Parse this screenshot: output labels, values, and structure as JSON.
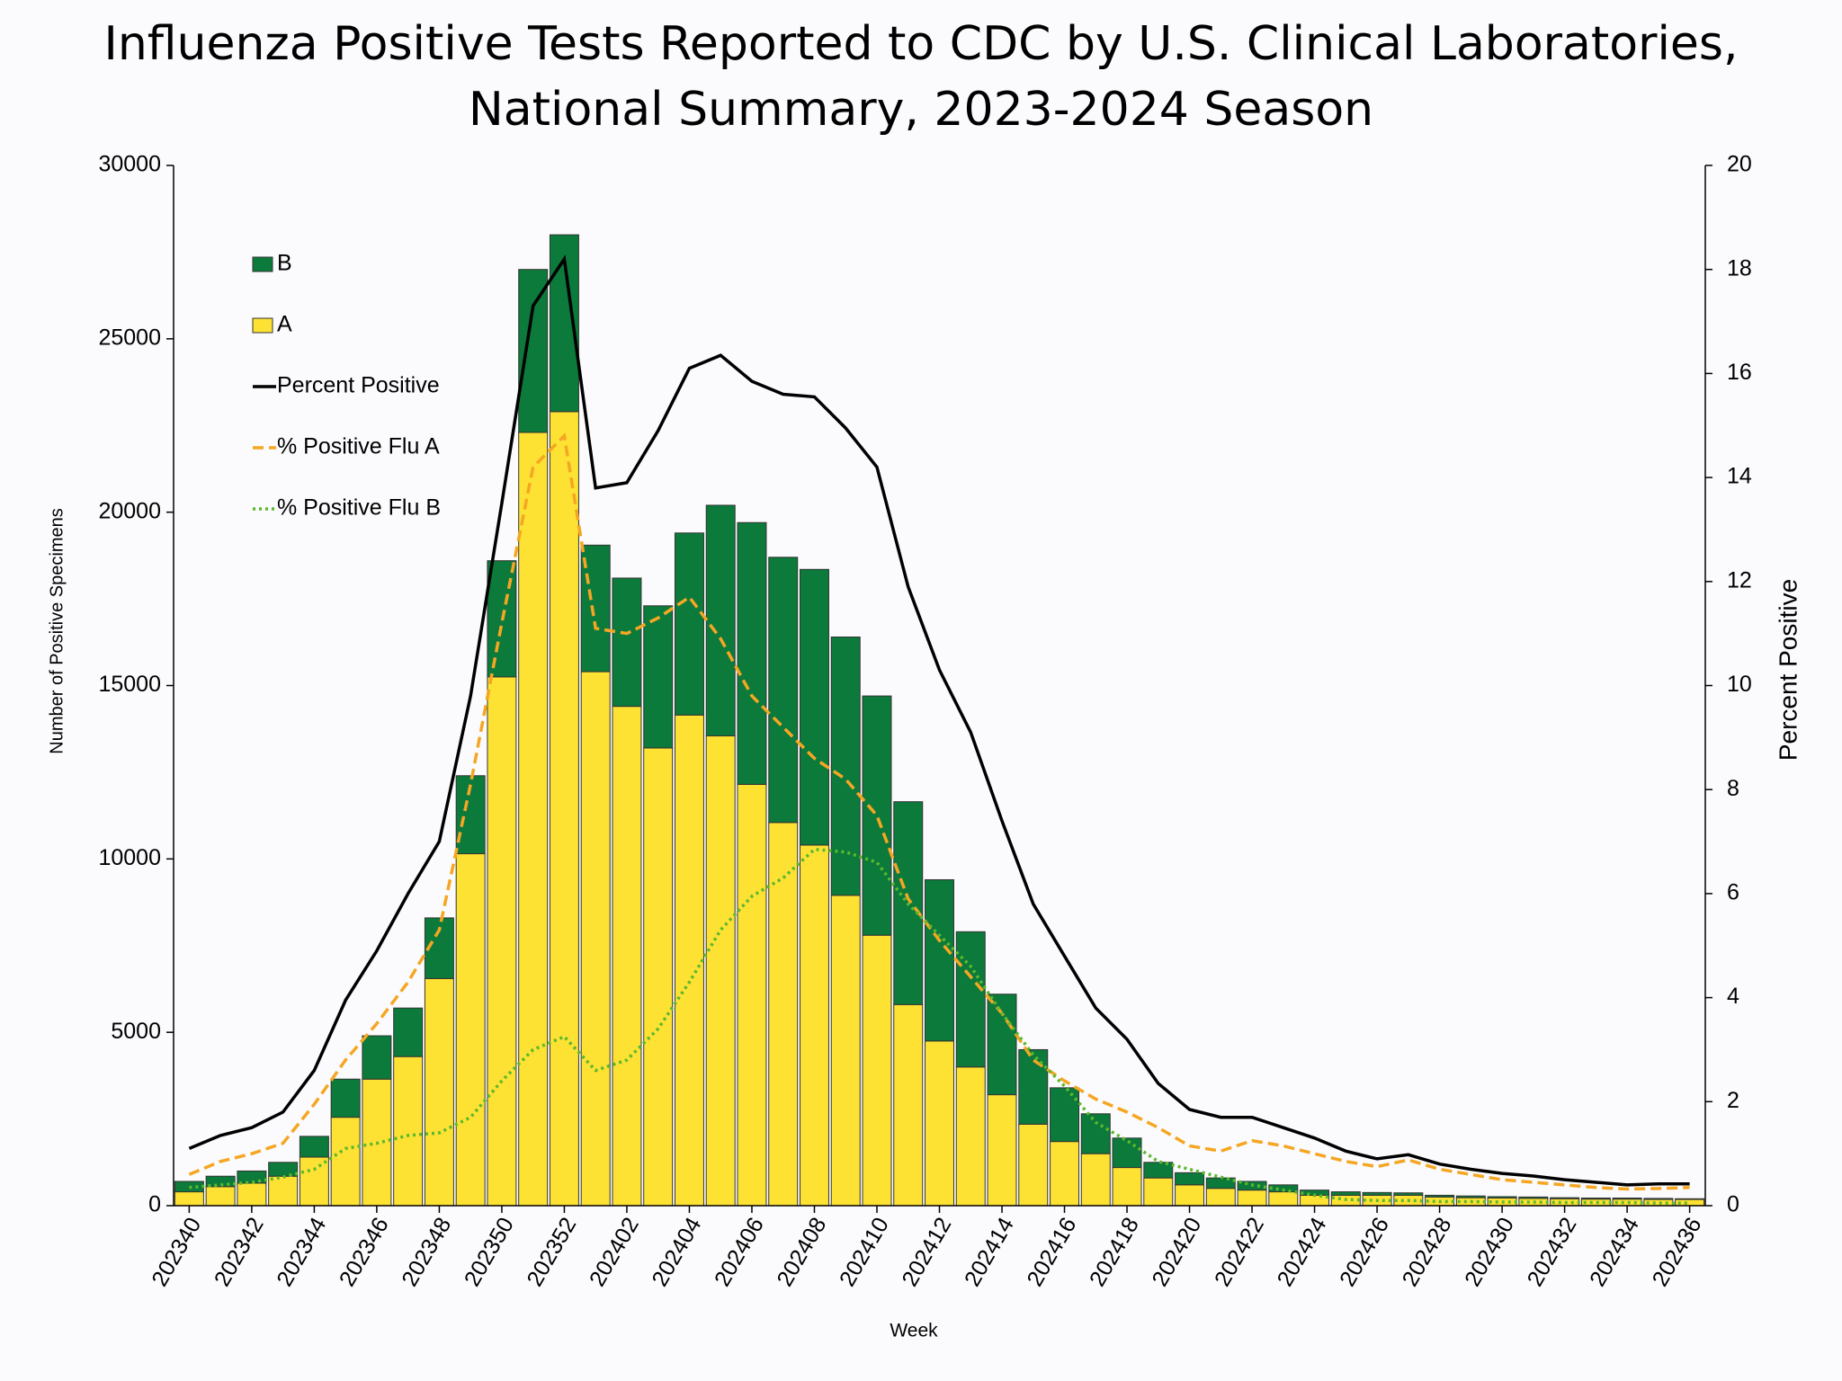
{
  "chart_data": {
    "type": "bar",
    "title": [
      "Influenza Positive Tests Reported to CDC by U.S. Clinical Laboratories,",
      "National Summary, 2023-2024 Season"
    ],
    "x_label": "Week",
    "y_label": "Number of Positive Specimens",
    "y2_label": "Percent Positive",
    "categories": [
      "202340",
      null,
      "202342",
      null,
      "202344",
      null,
      "202346",
      null,
      "202348",
      null,
      "202350",
      null,
      "202352",
      null,
      "202402",
      null,
      "202404",
      null,
      "202406",
      null,
      "202408",
      null,
      "202410",
      null,
      "202412",
      null,
      "202414",
      null,
      "202416",
      null,
      "202418",
      null,
      "202420",
      null,
      "202422",
      null,
      "202424",
      null,
      "202426",
      null,
      "202428",
      null,
      "202430",
      null,
      "202432",
      null,
      "202434",
      null,
      "202436"
    ],
    "ylim": [
      0,
      30000
    ],
    "yticks": [
      0,
      5000,
      10000,
      15000,
      20000,
      25000,
      30000
    ],
    "y2lim": [
      0,
      20
    ],
    "y2ticks": [
      0,
      2,
      4,
      6,
      8,
      10,
      12,
      14,
      16,
      18,
      20
    ],
    "stacked": true,
    "series": [
      {
        "name": "B",
        "type": "bar",
        "color": "#0b7a3a",
        "values": [
          300,
          300,
          350,
          400,
          600,
          1100,
          1250,
          1400,
          1750,
          2250,
          3350,
          4700,
          5100,
          3650,
          3700,
          4100,
          5250,
          6650,
          7550,
          7650,
          7950,
          7450,
          6900,
          5850,
          4650,
          3900,
          2900,
          2150,
          1550,
          1150,
          850,
          450,
          350,
          300,
          250,
          200,
          150,
          100,
          80,
          70,
          50,
          50,
          40,
          40,
          30,
          30,
          30,
          30,
          20
        ]
      },
      {
        "name": "A",
        "type": "bar",
        "color": "#fde233",
        "values": [
          400,
          550,
          650,
          850,
          1400,
          2550,
          3650,
          4300,
          6550,
          10150,
          15250,
          22300,
          22900,
          15400,
          14400,
          13200,
          14150,
          13550,
          12150,
          11050,
          10400,
          8950,
          7800,
          5800,
          4750,
          4000,
          3200,
          2350,
          1850,
          1500,
          1100,
          800,
          600,
          500,
          450,
          400,
          300,
          300,
          300,
          300,
          250,
          230,
          220,
          210,
          200,
          190,
          190,
          180,
          180
        ]
      },
      {
        "name": "Percent Positive",
        "type": "line",
        "axis": "y2",
        "color": "#000000",
        "dash": "solid",
        "values": [
          1.1,
          1.35,
          1.5,
          1.8,
          2.6,
          3.95,
          4.9,
          6.0,
          7.0,
          9.8,
          13.5,
          17.3,
          18.2,
          13.8,
          13.9,
          14.9,
          16.1,
          16.35,
          15.85,
          15.6,
          15.55,
          14.95,
          14.2,
          11.9,
          10.3,
          9.1,
          7.4,
          5.8,
          4.8,
          3.8,
          3.2,
          2.35,
          1.85,
          1.7,
          1.7,
          1.5,
          1.3,
          1.05,
          0.9,
          0.98,
          0.8,
          0.7,
          0.62,
          0.57,
          0.5,
          0.45,
          0.4,
          0.42,
          0.42
        ]
      },
      {
        "name": "% Positive Flu A",
        "type": "line",
        "axis": "y2",
        "color": "#f5a623",
        "dash": "dashed",
        "values": [
          0.6,
          0.85,
          1.0,
          1.2,
          1.95,
          2.8,
          3.5,
          4.3,
          5.3,
          8.1,
          11.2,
          14.2,
          14.8,
          11.1,
          11.0,
          11.3,
          11.7,
          10.9,
          9.8,
          9.2,
          8.6,
          8.2,
          7.5,
          5.9,
          5.1,
          4.4,
          3.7,
          2.8,
          2.4,
          2.05,
          1.8,
          1.5,
          1.15,
          1.05,
          1.25,
          1.15,
          1.0,
          0.85,
          0.75,
          0.88,
          0.7,
          0.6,
          0.5,
          0.45,
          0.4,
          0.35,
          0.32,
          0.33,
          0.35
        ]
      },
      {
        "name": "% Positive Flu B",
        "type": "line",
        "axis": "y2",
        "color": "#5cb82e",
        "dash": "dotted",
        "values": [
          0.35,
          0.4,
          0.45,
          0.55,
          0.7,
          1.1,
          1.2,
          1.35,
          1.4,
          1.7,
          2.4,
          3.0,
          3.25,
          2.6,
          2.8,
          3.4,
          4.3,
          5.3,
          5.95,
          6.3,
          6.85,
          6.8,
          6.6,
          5.8,
          5.2,
          4.6,
          3.7,
          2.9,
          2.3,
          1.6,
          1.25,
          0.85,
          0.7,
          0.55,
          0.4,
          0.3,
          0.2,
          0.12,
          0.1,
          0.1,
          0.08,
          0.08,
          0.07,
          0.07,
          0.06,
          0.06,
          0.06,
          0.05,
          0.05
        ]
      }
    ],
    "legend": "upper left"
  }
}
